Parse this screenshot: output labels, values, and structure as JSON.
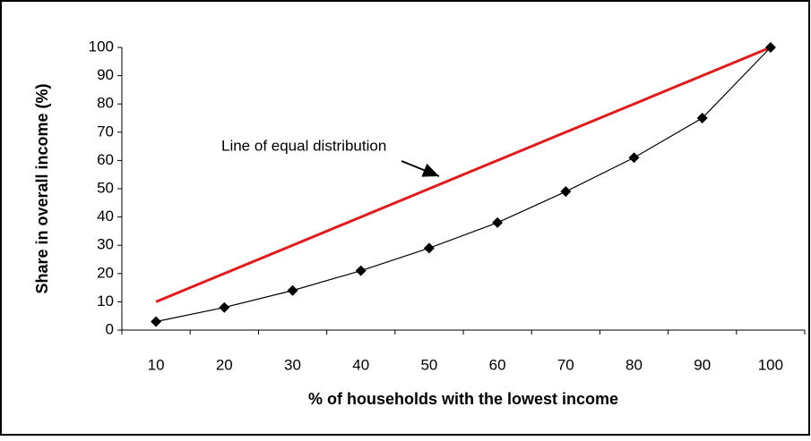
{
  "chart_data": {
    "type": "line",
    "categories": [
      "10",
      "20",
      "30",
      "40",
      "50",
      "60",
      "70",
      "80",
      "90",
      "100"
    ],
    "series": [
      {
        "name": "Line of equal distribution",
        "color": "#e31a1c",
        "values": [
          10,
          20,
          30,
          40,
          50,
          60,
          70,
          80,
          90,
          100
        ]
      },
      {
        "name": "Share in overall income",
        "color": "#000000",
        "values": [
          3,
          8,
          14,
          21,
          29,
          38,
          49,
          61,
          75,
          100
        ]
      }
    ],
    "annotation": "Line of equal distribution",
    "x_label": "% of households with the lowest income",
    "y_label": "Share in overall income (%)",
    "ylim": [
      0,
      100
    ],
    "yticks": [
      0,
      10,
      20,
      30,
      40,
      50,
      60,
      70,
      80,
      90,
      100
    ],
    "grid": false
  }
}
